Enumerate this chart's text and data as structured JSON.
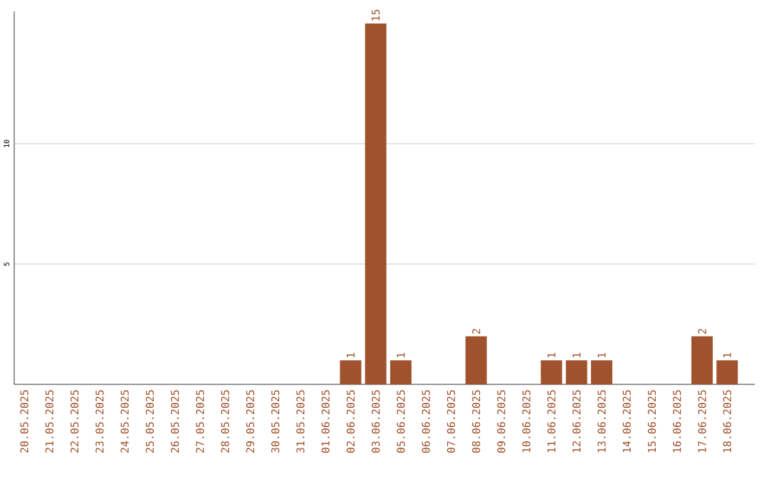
{
  "chart_data": {
    "type": "bar",
    "categories": [
      "20.05.2025",
      "21.05.2025",
      "22.05.2025",
      "23.05.2025",
      "24.05.2025",
      "25.05.2025",
      "26.05.2025",
      "27.05.2025",
      "28.05.2025",
      "29.05.2025",
      "30.05.2025",
      "31.05.2025",
      "01.06.2025",
      "02.06.2025",
      "03.06.2025",
      "05.06.2025",
      "06.06.2025",
      "07.06.2025",
      "08.06.2025",
      "09.06.2025",
      "10.06.2025",
      "11.06.2025",
      "12.06.2025",
      "13.06.2025",
      "14.06.2025",
      "15.06.2025",
      "16.06.2025",
      "17.06.2025",
      "18.06.2025"
    ],
    "values": [
      0,
      0,
      0,
      0,
      0,
      0,
      0,
      0,
      0,
      0,
      0,
      0,
      0,
      1,
      15,
      1,
      0,
      0,
      2,
      0,
      0,
      1,
      1,
      1,
      0,
      0,
      0,
      2,
      1
    ],
    "value_labels": [
      null,
      null,
      null,
      null,
      null,
      null,
      null,
      null,
      null,
      null,
      null,
      null,
      null,
      "1",
      "15",
      "1",
      null,
      null,
      "2",
      null,
      null,
      "1",
      "1",
      "1",
      null,
      null,
      null,
      "2",
      "1"
    ],
    "color": "#a0522d",
    "ylim": [
      0,
      15.5
    ],
    "yticks": [
      5,
      10
    ],
    "grid": "y"
  }
}
